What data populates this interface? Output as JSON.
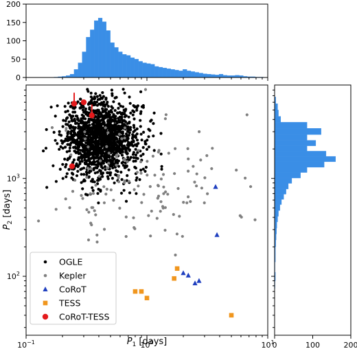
{
  "chart_data": [
    {
      "type": "scatter",
      "xlabel_main": "P",
      "xlabel_sub": "1",
      "xlabel_unit": " [days]",
      "ylabel_main": "P",
      "ylabel_sub": "2",
      "ylabel_unit": " [days]",
      "xscale": "log",
      "yscale": "log",
      "xlim": [
        0.1,
        10
      ],
      "ylim": [
        25,
        9000
      ],
      "x_ticks": [
        {
          "value": 0.1,
          "base": "10",
          "exp": "−1"
        },
        {
          "value": 1,
          "base": "10",
          "exp": "0"
        },
        {
          "value": 10,
          "base": "10",
          "exp": "1"
        }
      ],
      "y_ticks": [
        {
          "value": 100,
          "base": "10",
          "exp": "2"
        },
        {
          "value": 1000,
          "base": "10",
          "exp": "3"
        }
      ],
      "legend_position": "lower-left",
      "series": [
        {
          "name": "OGLE",
          "marker": "circle",
          "color": "#000000",
          "size": 2.1,
          "count": 1500,
          "seed": 7,
          "x_center": 0.42,
          "x_spread": 0.16,
          "y_center": 2500,
          "y_spread": 0.2
        },
        {
          "name": "Kepler",
          "marker": "circle",
          "color": "#808080",
          "size": 2.1,
          "count": 150,
          "seed": 11,
          "x_center": 0.8,
          "x_spread": 0.4,
          "y_center": 900,
          "y_spread": 0.35
        },
        {
          "name": "CoRoT",
          "marker": "triangle",
          "color": "#1f3fbf",
          "points": [
            [
              3.7,
              820
            ],
            [
              3.8,
              265
            ],
            [
              2.0,
              108
            ],
            [
              2.2,
              102
            ],
            [
              2.5,
              85
            ],
            [
              2.7,
              90
            ]
          ]
        },
        {
          "name": "TESS",
          "marker": "square",
          "color": "#f0961e",
          "points": [
            [
              1.78,
              120
            ],
            [
              1.68,
              95
            ],
            [
              0.8,
              70
            ],
            [
              0.9,
              70
            ],
            [
              1.0,
              60
            ],
            [
              5.0,
              40
            ]
          ]
        },
        {
          "name": "CoRoT-TESS",
          "marker": "circle-big",
          "color": "#e41a1c",
          "points": [
            [
              0.25,
              5800
            ],
            [
              0.3,
              6000
            ],
            [
              0.35,
              4400
            ],
            [
              0.24,
              1330
            ]
          ],
          "uplims": [
            [
              0.25,
              5800
            ],
            [
              0.35,
              4400
            ]
          ]
        }
      ]
    },
    {
      "type": "histogram",
      "orientation": "vertical",
      "color": "#3a8ee6",
      "xlim": [
        0.1,
        10
      ],
      "ylim": [
        0,
        200
      ],
      "y_ticks": [
        0,
        50,
        100,
        150,
        200
      ],
      "bin_start": 0.17,
      "bin_end": 9.2,
      "counts": [
        1,
        2,
        3,
        5,
        9,
        22,
        40,
        70,
        110,
        130,
        155,
        162,
        152,
        128,
        95,
        82,
        70,
        63,
        60,
        54,
        50,
        44,
        40,
        38,
        36,
        30,
        28,
        26,
        24,
        22,
        20,
        18,
        22,
        18,
        16,
        14,
        12,
        10,
        9,
        8,
        7,
        9,
        6,
        5,
        5,
        6,
        5,
        3,
        2,
        2,
        1,
        1
      ]
    },
    {
      "type": "histogram",
      "orientation": "horizontal",
      "color": "#3a8ee6",
      "xlim": [
        0,
        200
      ],
      "x_ticks": [
        0,
        100,
        200
      ],
      "ylim": [
        25,
        9000
      ],
      "bins": [
        {
          "y0": 5800,
          "y1": 6800,
          "count": 3
        },
        {
          "y0": 5000,
          "y1": 5800,
          "count": 8
        },
        {
          "y0": 4300,
          "y1": 5000,
          "count": 10
        },
        {
          "y0": 3750,
          "y1": 4300,
          "count": 16
        },
        {
          "y0": 3250,
          "y1": 3750,
          "count": 85
        },
        {
          "y0": 2800,
          "y1": 3250,
          "count": 122
        },
        {
          "y0": 2450,
          "y1": 2800,
          "count": 85
        },
        {
          "y0": 2150,
          "y1": 2450,
          "count": 108
        },
        {
          "y0": 1900,
          "y1": 2150,
          "count": 85
        },
        {
          "y0": 1680,
          "y1": 1900,
          "count": 135
        },
        {
          "y0": 1480,
          "y1": 1680,
          "count": 160
        },
        {
          "y0": 1300,
          "y1": 1480,
          "count": 130
        },
        {
          "y0": 1150,
          "y1": 1300,
          "count": 85
        },
        {
          "y0": 1010,
          "y1": 1150,
          "count": 68
        },
        {
          "y0": 890,
          "y1": 1010,
          "count": 45
        },
        {
          "y0": 780,
          "y1": 890,
          "count": 36
        },
        {
          "y0": 690,
          "y1": 780,
          "count": 30
        },
        {
          "y0": 610,
          "y1": 690,
          "count": 24
        },
        {
          "y0": 540,
          "y1": 610,
          "count": 18
        },
        {
          "y0": 470,
          "y1": 540,
          "count": 14
        },
        {
          "y0": 410,
          "y1": 470,
          "count": 10
        },
        {
          "y0": 360,
          "y1": 410,
          "count": 8
        },
        {
          "y0": 310,
          "y1": 360,
          "count": 6
        },
        {
          "y0": 270,
          "y1": 310,
          "count": 5
        },
        {
          "y0": 235,
          "y1": 270,
          "count": 4
        },
        {
          "y0": 200,
          "y1": 235,
          "count": 3
        },
        {
          "y0": 170,
          "y1": 200,
          "count": 2
        },
        {
          "y0": 140,
          "y1": 170,
          "count": 2
        },
        {
          "y0": 110,
          "y1": 140,
          "count": 1
        },
        {
          "y0": 90,
          "y1": 110,
          "count": 2
        },
        {
          "y0": 75,
          "y1": 90,
          "count": 1
        }
      ]
    }
  ]
}
